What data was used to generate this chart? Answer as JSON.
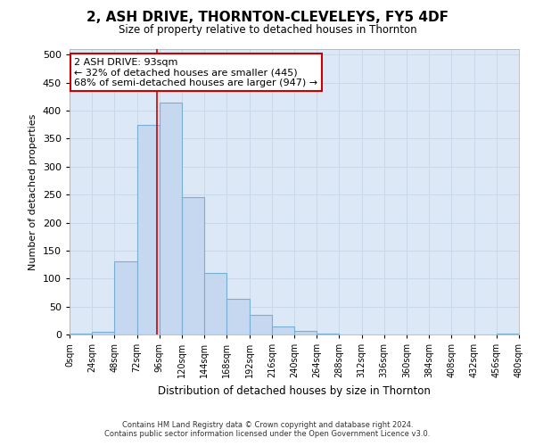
{
  "title": "2, ASH DRIVE, THORNTON-CLEVELEYS, FY5 4DF",
  "subtitle": "Size of property relative to detached houses in Thornton",
  "xlabel": "Distribution of detached houses by size in Thornton",
  "ylabel": "Number of detached properties",
  "footer_line1": "Contains HM Land Registry data © Crown copyright and database right 2024.",
  "footer_line2": "Contains public sector information licensed under the Open Government Licence v3.0.",
  "bar_values": [
    2,
    5,
    130,
    375,
    415,
    245,
    110,
    63,
    35,
    15,
    7,
    2,
    0,
    0,
    0,
    0,
    0,
    0,
    0,
    1
  ],
  "bin_edges": [
    0,
    24,
    48,
    72,
    96,
    120,
    144,
    168,
    192,
    216,
    240,
    264,
    288,
    312,
    336,
    360,
    384,
    408,
    432,
    456,
    480
  ],
  "bar_color": "#c5d8ef",
  "bar_edge_color": "#7aafd4",
  "red_line_x": 93,
  "annotation_text": "2 ASH DRIVE: 93sqm\n← 32% of detached houses are smaller (445)\n68% of semi-detached houses are larger (947) →",
  "annotation_box_color": "#ffffff",
  "annotation_box_edge": "#cc0000",
  "grid_color": "#c8d8e8",
  "plot_bg_color": "#dce8f5",
  "background_color": "#ffffff",
  "ylim": [
    0,
    510
  ],
  "yticks": [
    0,
    50,
    100,
    150,
    200,
    250,
    300,
    350,
    400,
    450,
    500
  ]
}
